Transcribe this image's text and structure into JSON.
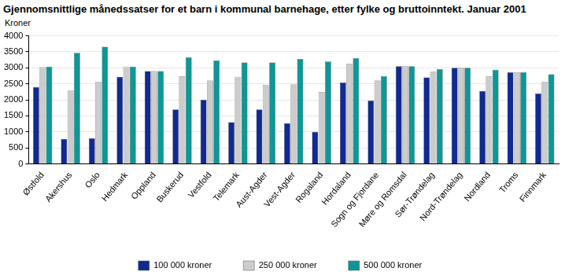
{
  "chart_data": {
    "type": "bar",
    "title": "Gjennomsnittlige månedssatser for et barn i kommunal barnehage, etter fylke og bruttoinntekt. Januar 2001",
    "y_label": "Kroner",
    "categories": [
      "Østfold",
      "Akershus",
      "Oslo",
      "Hedmark",
      "Oppland",
      "Buskerud",
      "Vestfold",
      "Telemark",
      "Aust-Agder",
      "Vest-Agder",
      "Rogaland",
      "Hordaland",
      "Sogn og Fjordane",
      "Møre og Romsdal",
      "Sør-Trøndelag",
      "Nord-Trøndelag",
      "Nordland",
      "Troms",
      "Finnmark"
    ],
    "series": [
      {
        "name": "100 000 kroner",
        "color": "#102a8f",
        "values": [
          2400,
          780,
          800,
          2720,
          2900,
          1700,
          2000,
          1300,
          1700,
          1270,
          1000,
          2540,
          1980,
          3050,
          2700,
          3000,
          2280,
          2860,
          2200
        ]
      },
      {
        "name": "250 000 kroner",
        "color": "#cccccc",
        "values": [
          3020,
          2300,
          2560,
          3040,
          2900,
          2740,
          2600,
          2720,
          2460,
          2480,
          2250,
          3130,
          2600,
          3050,
          2880,
          3000,
          2740,
          2860,
          2560
        ]
      },
      {
        "name": "500 000 kroner",
        "color": "#0f9696",
        "values": [
          3040,
          3470,
          3660,
          3040,
          2900,
          3330,
          3230,
          3170,
          3170,
          3280,
          3200,
          3300,
          2740,
          3050,
          2960,
          3000,
          2940,
          2860,
          2800
        ]
      }
    ],
    "ylim": [
      0,
      4000
    ],
    "yticks": [
      0,
      500,
      1000,
      1500,
      2000,
      2500,
      3000,
      3500,
      4000
    ],
    "grid": true,
    "legend": "bottom"
  }
}
